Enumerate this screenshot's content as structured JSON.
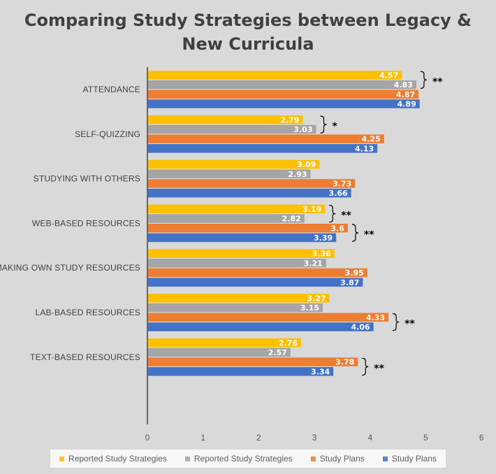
{
  "chart_data": {
    "type": "bar",
    "orientation": "horizontal",
    "title_lines": [
      "Comparing Study Strategies between Legacy &",
      "New Curricula"
    ],
    "categories": [
      "ATTENDANCE",
      "SELF-QUIZZING",
      "STUDYING WITH OTHERS",
      "WEB-BASED RESOURCES",
      "MAKING OWN STUDY RESOURCES",
      "LAB-BASED RESOURCES",
      "TEXT-BASED RESOURCES"
    ],
    "series": [
      {
        "name": "Reported Study Strategies",
        "color": "#ffc000",
        "values": [
          4.57,
          2.79,
          3.09,
          3.19,
          3.36,
          3.27,
          2.76
        ]
      },
      {
        "name": "Reported Study Strategies",
        "color": "#a5a5a5",
        "values": [
          4.83,
          3.03,
          2.93,
          2.82,
          3.21,
          3.15,
          2.57
        ]
      },
      {
        "name": "Study Plans",
        "color": "#ed7d31",
        "values": [
          4.87,
          4.25,
          3.73,
          3.6,
          3.95,
          4.33,
          3.78
        ]
      },
      {
        "name": "Study Plans",
        "color": "#4472c4",
        "values": [
          4.89,
          4.13,
          3.66,
          3.39,
          3.87,
          4.06,
          3.34
        ]
      }
    ],
    "data_labels": [
      [
        "4.57",
        "2.79",
        "3.09",
        "3.19",
        "3.36",
        "3.27",
        "2.76"
      ],
      [
        "4.83",
        "3.03",
        "2.93",
        "2.82",
        "3.21",
        "3.15",
        "2.57"
      ],
      [
        "4.87",
        "4.25",
        "3.73",
        "3.6",
        "3.95",
        "4.33",
        "3.78"
      ],
      [
        "4.89",
        "4.13",
        "3.66",
        "3.39",
        "3.87",
        "4.06",
        "3.34"
      ]
    ],
    "xlim": [
      0,
      6
    ],
    "x_ticks": [
      "0",
      "1",
      "2",
      "3",
      "4",
      "5",
      "6"
    ],
    "grid": false,
    "legend_position": "bottom",
    "significance": [
      {
        "category": 0,
        "series_pair": [
          0,
          1
        ],
        "mark": "**"
      },
      {
        "category": 1,
        "series_pair": [
          0,
          1
        ],
        "mark": "*"
      },
      {
        "category": 3,
        "series_pair": [
          0,
          1
        ],
        "mark": "**"
      },
      {
        "category": 3,
        "series_pair": [
          2,
          3
        ],
        "mark": "**"
      },
      {
        "category": 5,
        "series_pair": [
          2,
          3
        ],
        "mark": "**"
      },
      {
        "category": 6,
        "series_pair": [
          2,
          3
        ],
        "mark": "**"
      }
    ]
  },
  "colors": {
    "background": "#d9d9d9",
    "axis": "#404040"
  }
}
